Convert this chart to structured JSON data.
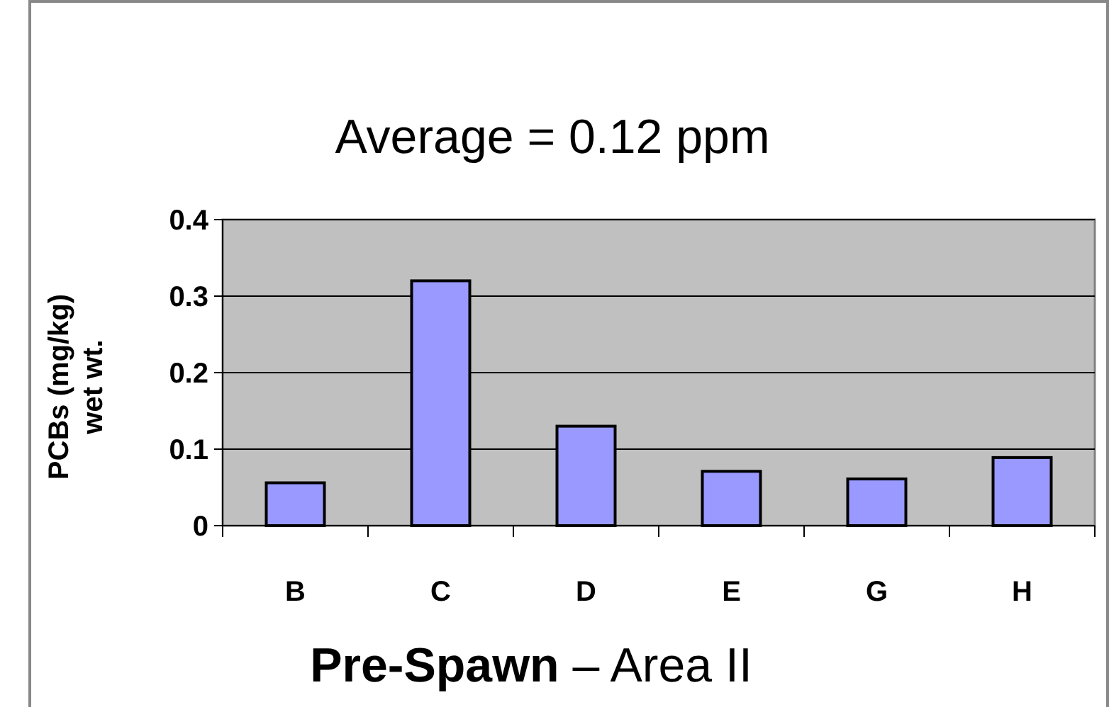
{
  "chart_data": {
    "type": "bar",
    "title": "Average =  0.12 ppm",
    "xlabel": "Pre-Spawn – Area II",
    "ylabel": "PCBs (mg/kg) wet wt.",
    "categories": [
      "B",
      "C",
      "D",
      "E",
      "G",
      "H"
    ],
    "values": [
      0.056,
      0.32,
      0.13,
      0.071,
      0.061,
      0.089
    ],
    "color": "#9999ff",
    "ylim": [
      0,
      0.4
    ],
    "yticks": [
      0,
      0.1,
      0.2,
      0.3,
      0.4
    ],
    "grid": "y"
  }
}
